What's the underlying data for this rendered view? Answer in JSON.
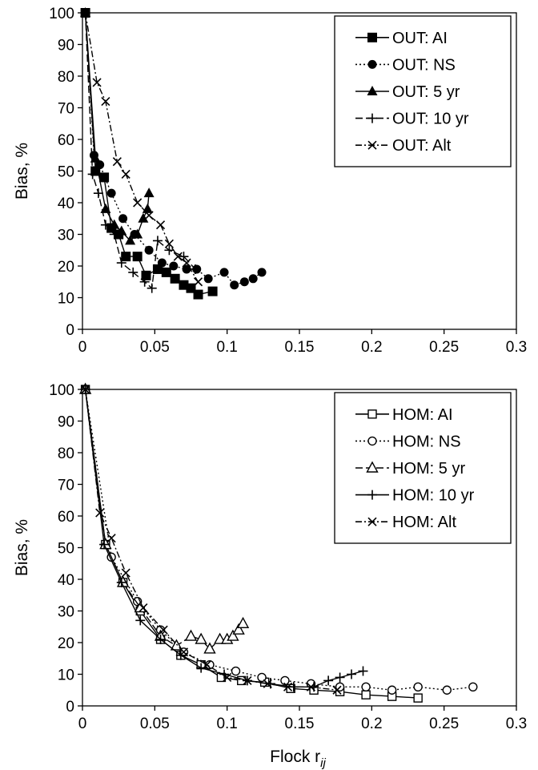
{
  "figure": {
    "xlabel_main": "Flock r",
    "xlabel_sub": "ij"
  },
  "chart_data": [
    {
      "type": "scatter",
      "ylabel": "Bias, %",
      "xlim": [
        0,
        0.3
      ],
      "ylim": [
        0,
        100
      ],
      "xticks": [
        "0",
        "0.05",
        "0.1",
        "0.15",
        "0.2",
        "0.25",
        "0.3"
      ],
      "yticks": [
        "0",
        "10",
        "20",
        "30",
        "40",
        "50",
        "60",
        "70",
        "80",
        "90",
        "100"
      ],
      "grid": false,
      "legend_position": "top-right",
      "series": [
        {
          "name": "OUT: AI",
          "marker": "square-filled",
          "dash": "solid",
          "points": [
            [
              0.002,
              100
            ],
            [
              0.009,
              50
            ],
            [
              0.015,
              48
            ],
            [
              0.02,
              32
            ],
            [
              0.025,
              30
            ],
            [
              0.03,
              23
            ],
            [
              0.038,
              23
            ],
            [
              0.044,
              17
            ],
            [
              0.052,
              19
            ],
            [
              0.058,
              18
            ],
            [
              0.064,
              16
            ],
            [
              0.07,
              14
            ],
            [
              0.075,
              13
            ],
            [
              0.08,
              11
            ],
            [
              0.09,
              12
            ]
          ]
        },
        {
          "name": "OUT: NS",
          "marker": "circle-filled",
          "dash": "dot",
          "points": [
            [
              0.002,
              100
            ],
            [
              0.008,
              55
            ],
            [
              0.012,
              52
            ],
            [
              0.02,
              43
            ],
            [
              0.028,
              35
            ],
            [
              0.036,
              30
            ],
            [
              0.046,
              25
            ],
            [
              0.055,
              21
            ],
            [
              0.063,
              20
            ],
            [
              0.072,
              19
            ],
            [
              0.079,
              19
            ],
            [
              0.087,
              16
            ],
            [
              0.098,
              18
            ],
            [
              0.105,
              14
            ],
            [
              0.112,
              15
            ],
            [
              0.118,
              16
            ],
            [
              0.124,
              18
            ]
          ]
        },
        {
          "name": "OUT: 5 yr",
          "marker": "triangle-filled",
          "dash": "solid",
          "points": [
            [
              0.002,
              100
            ],
            [
              0.009,
              54
            ],
            [
              0.016,
              38
            ],
            [
              0.022,
              33
            ],
            [
              0.027,
              31
            ],
            [
              0.033,
              28
            ],
            [
              0.038,
              30
            ],
            [
              0.042,
              35
            ],
            [
              0.045,
              38
            ],
            [
              0.046,
              43
            ]
          ]
        },
        {
          "name": "OUT: 10 yr",
          "marker": "plus",
          "dash": "longdash",
          "points": [
            [
              0.002,
              100
            ],
            [
              0.007,
              49
            ],
            [
              0.011,
              43
            ],
            [
              0.016,
              33
            ],
            [
              0.022,
              30
            ],
            [
              0.027,
              21
            ],
            [
              0.035,
              18
            ],
            [
              0.043,
              15
            ],
            [
              0.048,
              13
            ],
            [
              0.052,
              28
            ],
            [
              0.06,
              25
            ],
            [
              0.07,
              23
            ],
            [
              0.078,
              19
            ]
          ]
        },
        {
          "name": "OUT: Alt",
          "marker": "x",
          "dash": "dashdot",
          "points": [
            [
              0.002,
              100
            ],
            [
              0.01,
              78
            ],
            [
              0.016,
              72
            ],
            [
              0.024,
              53
            ],
            [
              0.03,
              49
            ],
            [
              0.038,
              40
            ],
            [
              0.046,
              36
            ],
            [
              0.054,
              33
            ],
            [
              0.06,
              27
            ],
            [
              0.066,
              23
            ],
            [
              0.072,
              21
            ],
            [
              0.08,
              15
            ]
          ]
        }
      ]
    },
    {
      "type": "scatter",
      "ylabel": "Bias, %",
      "xlim": [
        0,
        0.3
      ],
      "ylim": [
        0,
        100
      ],
      "xticks": [
        "0",
        "0.05",
        "0.1",
        "0.15",
        "0.2",
        "0.25",
        "0.3"
      ],
      "yticks": [
        "0",
        "10",
        "20",
        "30",
        "40",
        "50",
        "60",
        "70",
        "80",
        "90",
        "100"
      ],
      "grid": false,
      "legend_position": "top-right",
      "series": [
        {
          "name": "HOM: AI",
          "marker": "square-open",
          "dash": "solid",
          "points": [
            [
              0.002,
              100
            ],
            [
              0.016,
              51
            ],
            [
              0.028,
              39
            ],
            [
              0.04,
              30
            ],
            [
              0.054,
              21
            ],
            [
              0.068,
              16
            ],
            [
              0.082,
              13
            ],
            [
              0.096,
              9
            ],
            [
              0.11,
              8
            ],
            [
              0.126,
              7.5
            ],
            [
              0.144,
              5.5
            ],
            [
              0.16,
              5
            ],
            [
              0.178,
              4.5
            ],
            [
              0.196,
              3.5
            ],
            [
              0.214,
              3
            ],
            [
              0.232,
              2.5
            ]
          ]
        },
        {
          "name": "HOM: NS",
          "marker": "circle-open",
          "dash": "dot",
          "points": [
            [
              0.002,
              100
            ],
            [
              0.02,
              47
            ],
            [
              0.038,
              33
            ],
            [
              0.054,
              24
            ],
            [
              0.07,
              17
            ],
            [
              0.088,
              13
            ],
            [
              0.106,
              11
            ],
            [
              0.124,
              9
            ],
            [
              0.14,
              8
            ],
            [
              0.158,
              7
            ],
            [
              0.178,
              6
            ],
            [
              0.196,
              6
            ],
            [
              0.214,
              5
            ],
            [
              0.232,
              6
            ],
            [
              0.252,
              5
            ],
            [
              0.27,
              6
            ]
          ]
        },
        {
          "name": "HOM: 5 yr",
          "marker": "triangle-open",
          "dash": "longdash",
          "points": [
            [
              0.002,
              100
            ],
            [
              0.016,
              51
            ],
            [
              0.028,
              39
            ],
            [
              0.04,
              31
            ],
            [
              0.054,
              22
            ],
            [
              0.065,
              19
            ],
            [
              0.075,
              22
            ],
            [
              0.082,
              21
            ],
            [
              0.088,
              18
            ],
            [
              0.095,
              21
            ],
            [
              0.1,
              21
            ],
            [
              0.104,
              22
            ],
            [
              0.108,
              24
            ],
            [
              0.111,
              26
            ]
          ]
        },
        {
          "name": "HOM: 10 yr",
          "marker": "plus",
          "dash": "solid",
          "points": [
            [
              0.002,
              100
            ],
            [
              0.015,
              51
            ],
            [
              0.027,
              39
            ],
            [
              0.04,
              27
            ],
            [
              0.054,
              21
            ],
            [
              0.068,
              16
            ],
            [
              0.082,
              12
            ],
            [
              0.098,
              10
            ],
            [
              0.114,
              8
            ],
            [
              0.13,
              7
            ],
            [
              0.146,
              6
            ],
            [
              0.16,
              6
            ],
            [
              0.17,
              8
            ],
            [
              0.178,
              9
            ],
            [
              0.186,
              10
            ],
            [
              0.194,
              11
            ]
          ]
        },
        {
          "name": "HOM: Alt",
          "marker": "x",
          "dash": "dashdot",
          "points": [
            [
              0.002,
              100
            ],
            [
              0.012,
              61
            ],
            [
              0.02,
              53
            ],
            [
              0.03,
              42
            ],
            [
              0.042,
              31
            ],
            [
              0.056,
              24
            ],
            [
              0.07,
              17
            ],
            [
              0.086,
              13
            ],
            [
              0.1,
              9
            ],
            [
              0.114,
              8
            ],
            [
              0.128,
              7
            ],
            [
              0.142,
              6
            ],
            [
              0.158,
              6
            ],
            [
              0.176,
              5
            ]
          ]
        }
      ]
    }
  ]
}
